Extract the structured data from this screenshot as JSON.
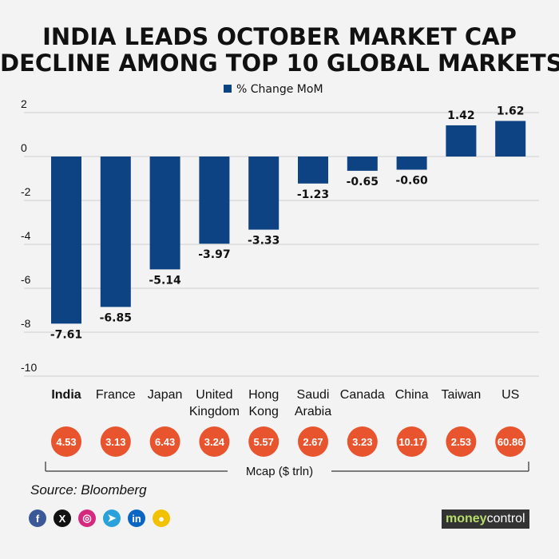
{
  "title_line1": "INDIA LEADS OCTOBER MARKET CAP",
  "title_line2": "DECLINE AMONG TOP 10 GLOBAL MARKETS",
  "colors": {
    "bar": "#0d4283",
    "bubble": "#e8542e",
    "grid": "#cfcfcf",
    "text": "#111111"
  },
  "chart_data": {
    "type": "bar",
    "legend": "% Change MoM",
    "categories": [
      [
        "India"
      ],
      [
        "France"
      ],
      [
        "Japan"
      ],
      [
        "United",
        "Kingdom"
      ],
      [
        "Hong",
        "Kong"
      ],
      [
        "Saudi",
        "Arabia"
      ],
      [
        "Canada"
      ],
      [
        "China"
      ],
      [
        "Taiwan"
      ],
      [
        "US"
      ]
    ],
    "bold_category_index": 0,
    "values": [
      -7.61,
      -6.85,
      -5.14,
      -3.97,
      -3.33,
      -1.23,
      -0.65,
      -0.6,
      1.42,
      1.62
    ],
    "value_labels": [
      "-7.61",
      "-6.85",
      "-5.14",
      "-3.97",
      "-3.33",
      "-1.23",
      "-0.65",
      "-0.60",
      "1.42",
      "1.62"
    ],
    "yticks": [
      2,
      0,
      -2,
      -4,
      -6,
      -8,
      -10
    ],
    "ylim": [
      -10,
      2
    ],
    "mcap_label": "Mcap ($ trln)",
    "mcap_values": [
      "4.53",
      "3.13",
      "6.43",
      "3.24",
      "5.57",
      "2.67",
      "3.23",
      "10.17",
      "2.53",
      "60.86"
    ]
  },
  "source": "Source: Bloomberg",
  "social_icons": [
    {
      "name": "facebook-icon",
      "glyph": "f",
      "color": "#3b5998"
    },
    {
      "name": "x-icon",
      "glyph": "X",
      "color": "#111111"
    },
    {
      "name": "instagram-icon",
      "glyph": "◎",
      "color": "#d6297d"
    },
    {
      "name": "telegram-icon",
      "glyph": "➤",
      "color": "#2aa1da"
    },
    {
      "name": "linkedin-icon",
      "glyph": "in",
      "color": "#0a66c2"
    },
    {
      "name": "koo-icon",
      "glyph": "●",
      "color": "#f2c200"
    }
  ],
  "brand": {
    "money": "money",
    "control": "control"
  }
}
